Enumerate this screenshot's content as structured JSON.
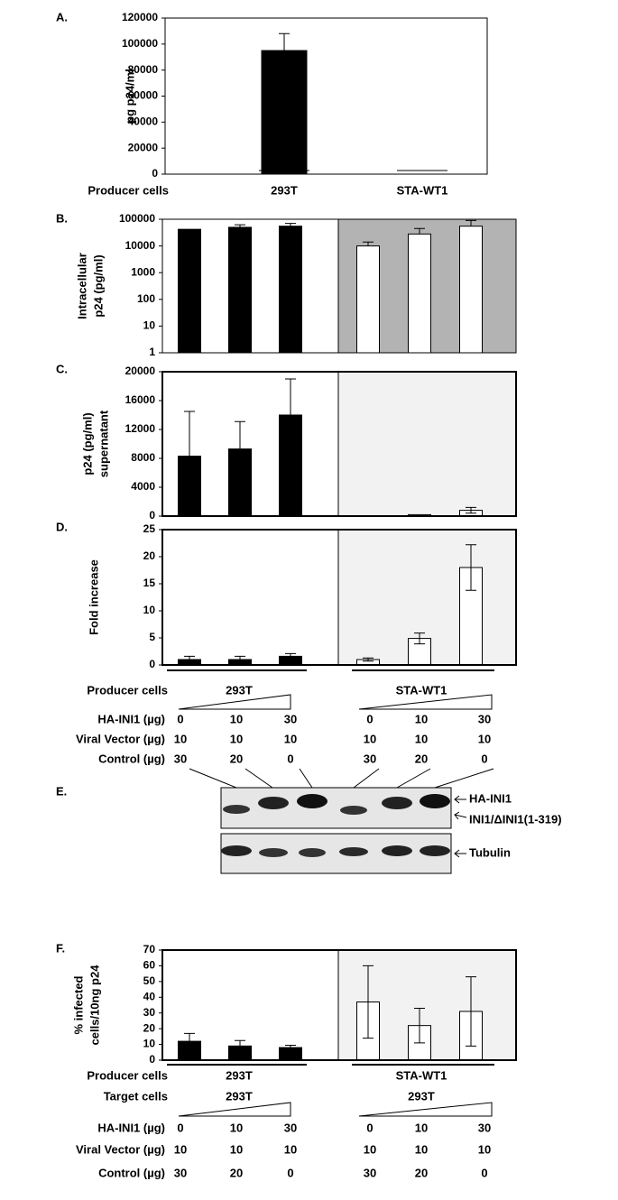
{
  "chart_data": [
    {
      "type": "bar",
      "label": "A.",
      "ylabel": [
        "pg p24/ml"
      ],
      "xlabel": "Producer cells",
      "categories": [
        "293T",
        "STA-WT1"
      ],
      "values": [
        95000,
        0
      ],
      "errors": [
        13000,
        0
      ],
      "colors": [
        "#000000",
        "#000000"
      ],
      "ylim": [
        0,
        120000
      ],
      "yticks": [
        0,
        20000,
        40000,
        60000,
        80000,
        100000,
        120000
      ],
      "error_style": "upper"
    },
    {
      "type": "bar",
      "label": "B.",
      "ylabel": [
        "Intracellular",
        "p24 (pg/ml)"
      ],
      "categories": [
        null,
        null,
        null,
        null,
        null,
        null
      ],
      "values": [
        42000,
        50000,
        55000,
        10000,
        28000,
        55000
      ],
      "errors": [
        0,
        12000,
        15000,
        4000,
        17000,
        35000
      ],
      "colors": [
        "#000000",
        "#000000",
        "#000000",
        "#ffffff",
        "#ffffff",
        "#ffffff"
      ],
      "log_scale": true,
      "ylim": [
        1,
        100000
      ],
      "yticks": [
        1,
        10,
        100,
        1000,
        10000,
        100000
      ],
      "shade_color": "#b3b3b3",
      "error_style": "upper"
    },
    {
      "type": "bar",
      "label": "C.",
      "ylabel": [
        "p24 (pg/ml)",
        "supernatant"
      ],
      "categories": [
        null,
        null,
        null,
        null,
        null,
        null
      ],
      "values": [
        8300,
        9300,
        14000,
        0,
        200,
        800
      ],
      "errors": [
        6200,
        3800,
        5000,
        0,
        0,
        400
      ],
      "colors": [
        "#000000",
        "#000000",
        "#000000",
        "#ffffff",
        "#ffffff",
        "#ffffff"
      ],
      "ylim": [
        0,
        20000
      ],
      "yticks": [
        0,
        4000,
        8000,
        12000,
        16000,
        20000
      ],
      "shade_color": "#f2f2f2",
      "error_style": "both"
    },
    {
      "type": "bar",
      "label": "D.",
      "ylabel": [
        "Fold increase"
      ],
      "categories": [
        null,
        null,
        null,
        null,
        null,
        null
      ],
      "values": [
        1,
        1,
        1.6,
        1,
        4.9,
        18
      ],
      "errors": [
        0.6,
        0.6,
        0.5,
        0.3,
        1,
        4.2
      ],
      "colors": [
        "#000000",
        "#000000",
        "#000000",
        "#ffffff",
        "#ffffff",
        "#ffffff"
      ],
      "ylim": [
        0,
        25
      ],
      "yticks": [
        0,
        5,
        10,
        15,
        20,
        25
      ],
      "shade_color": "#f2f2f2",
      "error_style": "both"
    },
    {
      "type": "bar",
      "label": "F.",
      "ylabel": [
        "% infected",
        "cells/10ng p24"
      ],
      "categories": [
        null,
        null,
        null,
        null,
        null,
        null
      ],
      "values": [
        12,
        9,
        8,
        37,
        22,
        31
      ],
      "errors": [
        5,
        3.5,
        1.5,
        23,
        11,
        22
      ],
      "colors": [
        "#000000",
        "#000000",
        "#000000",
        "#ffffff",
        "#ffffff",
        "#ffffff"
      ],
      "ylim": [
        0,
        70
      ],
      "yticks": [
        0,
        10,
        20,
        30,
        40,
        50,
        60,
        70
      ],
      "shade_color": "#f2f2f2",
      "error_style": "both"
    }
  ],
  "conditions_d": {
    "producer_label": "Producer cells",
    "producers": [
      "293T",
      "STA-WT1"
    ],
    "rows": [
      {
        "label": "HA-INI1 (µg)",
        "values": [
          0,
          10,
          30,
          0,
          10,
          30
        ]
      },
      {
        "label": "Viral Vector (µg)",
        "values": [
          10,
          10,
          10,
          10,
          10,
          10
        ]
      },
      {
        "label": "Control (µg)",
        "values": [
          30,
          20,
          0,
          30,
          20,
          0
        ]
      }
    ]
  },
  "blot": {
    "label": "E.",
    "bands": [
      "HA-INI1",
      "INI1/ΔINI1(1-319)",
      "Tubulin"
    ]
  },
  "conditions_f": {
    "producer_label": "Producer cells",
    "producers": [
      "293T",
      "STA-WT1"
    ],
    "target_label": "Target cells",
    "targets": [
      "293T",
      "293T"
    ],
    "rows": [
      {
        "label": "HA-INI1 (µg)",
        "values": [
          0,
          10,
          30,
          0,
          10,
          30
        ]
      },
      {
        "label": "Viral Vector (µg)",
        "values": [
          10,
          10,
          10,
          10,
          10,
          10
        ]
      },
      {
        "label": "Control (µg)",
        "values": [
          30,
          20,
          0,
          30,
          20,
          0
        ]
      }
    ]
  }
}
